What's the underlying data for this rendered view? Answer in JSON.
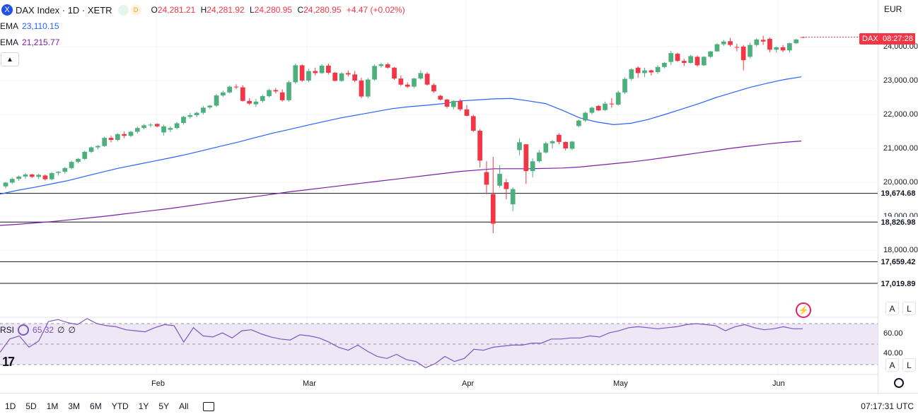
{
  "header": {
    "symbol_icon": "X",
    "title": "DAX Index · 1D · XETR",
    "badge_1": "",
    "badge_2": "D",
    "ohlc": {
      "o_key": "O",
      "o_val": "24,281.21",
      "h_key": "H",
      "h_val": "24,281.92",
      "l_key": "L",
      "l_val": "24,280.95",
      "c_key": "C",
      "c_val": "24,280.95",
      "change": "+4.47 (+0.02%)"
    }
  },
  "indicators": {
    "ema_fast": {
      "label": "EMA",
      "value": "23,110.15",
      "color": "#2962ff"
    },
    "ema_slow": {
      "label": "EMA",
      "value": "21,215.77",
      "color": "#7b1fa2"
    },
    "rsi": {
      "label": "RSI",
      "value": "65.32",
      "extra1": "∅",
      "extra2": "∅",
      "color": "#7e57c2"
    }
  },
  "currency": "EUR",
  "axis": {
    "price_ticks": [
      "24,000.00",
      "23,000.00",
      "22,000.00",
      "21,000.00",
      "20,000.00",
      "19,000.00",
      "18,000.00"
    ],
    "rsi_ticks": [
      "60.00",
      "40.00"
    ],
    "months": [
      "Feb",
      "Mar",
      "Apr",
      "May",
      "Jun"
    ]
  },
  "levels": [
    "19,674.68",
    "18,826.98",
    "17,659.42",
    "17,019.89"
  ],
  "last_price": {
    "symbol": "DAX",
    "countdown": "08:27:28"
  },
  "scale_buttons": {
    "auto": "A",
    "log": "L"
  },
  "ranges": [
    "1D",
    "5D",
    "1M",
    "3M",
    "6M",
    "YTD",
    "1Y",
    "5Y",
    "All"
  ],
  "clock": "07:17:31 UTC",
  "tv_logo": "17",
  "colors": {
    "up": "#26a69a",
    "up_fill": "#4caf7d",
    "down": "#ef5350",
    "down_fill": "#f23645",
    "rsi_band": "#ede7f6"
  },
  "chart_data": {
    "type": "candlestick",
    "title": "DAX Index · 1D · XETR",
    "ylim": [
      17400,
      24700
    ],
    "x_labels": [
      "Feb",
      "Mar",
      "Apr",
      "May",
      "Jun"
    ],
    "horizontal_levels": [
      19674.68,
      18826.98,
      17659.42,
      17019.89
    ],
    "candles": [
      [
        19880,
        20010,
        19820,
        19990
      ],
      [
        19990,
        20140,
        19950,
        20100
      ],
      [
        20100,
        20200,
        20040,
        20170
      ],
      [
        20170,
        20280,
        20100,
        20230
      ],
      [
        20230,
        20250,
        20120,
        20160
      ],
      [
        20160,
        20250,
        20100,
        20220
      ],
      [
        20200,
        20230,
        20050,
        20090
      ],
      [
        20090,
        20300,
        20060,
        20270
      ],
      [
        20280,
        20330,
        20200,
        20310
      ],
      [
        20310,
        20450,
        20250,
        20420
      ],
      [
        20420,
        20640,
        20380,
        20600
      ],
      [
        20600,
        20720,
        20560,
        20690
      ],
      [
        20690,
        20930,
        20650,
        20900
      ],
      [
        20900,
        21060,
        20860,
        21030
      ],
      [
        21030,
        21100,
        20970,
        21070
      ],
      [
        21070,
        21350,
        21040,
        21310
      ],
      [
        21310,
        21380,
        21180,
        21250
      ],
      [
        21250,
        21450,
        21200,
        21420
      ],
      [
        21420,
        21500,
        21300,
        21370
      ],
      [
        21370,
        21520,
        21330,
        21490
      ],
      [
        21490,
        21640,
        21440,
        21600
      ],
      [
        21600,
        21720,
        21560,
        21680
      ],
      [
        21680,
        21750,
        21620,
        21700
      ],
      [
        21720,
        21740,
        21620,
        21650
      ],
      [
        21470,
        21700,
        21380,
        21650
      ],
      [
        21550,
        21650,
        21480,
        21600
      ],
      [
        21600,
        21780,
        21560,
        21740
      ],
      [
        21750,
        21960,
        21700,
        21930
      ],
      [
        21930,
        22050,
        21880,
        21980
      ],
      [
        21980,
        22080,
        21920,
        22050
      ],
      [
        22050,
        22250,
        22000,
        22200
      ],
      [
        22210,
        22280,
        22160,
        22260
      ],
      [
        22260,
        22600,
        22220,
        22560
      ],
      [
        22560,
        22700,
        22520,
        22650
      ],
      [
        22650,
        22850,
        22620,
        22820
      ],
      [
        22820,
        22890,
        22750,
        22800
      ],
      [
        22800,
        22860,
        22380,
        22400
      ],
      [
        22400,
        22480,
        22280,
        22320
      ],
      [
        22300,
        22460,
        22220,
        22380
      ],
      [
        22400,
        22580,
        22350,
        22540
      ],
      [
        22540,
        22760,
        22500,
        22720
      ],
      [
        22720,
        22780,
        22620,
        22680
      ],
      [
        22650,
        22740,
        22380,
        22420
      ],
      [
        22420,
        23000,
        22380,
        22950
      ],
      [
        22950,
        23500,
        22900,
        23450
      ],
      [
        23450,
        23480,
        22960,
        23000
      ],
      [
        23000,
        23350,
        22950,
        23280
      ],
      [
        23280,
        23380,
        23150,
        23220
      ],
      [
        23220,
        23480,
        23200,
        23440
      ],
      [
        23440,
        23500,
        23180,
        23230
      ],
      [
        23230,
        23250,
        22980,
        22990
      ],
      [
        22990,
        23250,
        22960,
        23210
      ],
      [
        23220,
        23300,
        23120,
        23180
      ],
      [
        23180,
        23280,
        22950,
        23000
      ],
      [
        23000,
        23080,
        22480,
        22530
      ],
      [
        22530,
        23080,
        22480,
        23030
      ],
      [
        23030,
        23480,
        22990,
        23430
      ],
      [
        23430,
        23520,
        23370,
        23480
      ],
      [
        23480,
        23530,
        23350,
        23380
      ],
      [
        23380,
        23400,
        23020,
        23060
      ],
      [
        23060,
        23150,
        22840,
        22880
      ],
      [
        22880,
        22950,
        22780,
        22820
      ],
      [
        22820,
        23080,
        22780,
        23060
      ],
      [
        23060,
        23300,
        23020,
        23220
      ],
      [
        23200,
        23250,
        22850,
        22880
      ],
      [
        22870,
        22920,
        22640,
        22680
      ],
      [
        22550,
        22580,
        22410,
        22440
      ],
      [
        22440,
        22460,
        22180,
        22230
      ],
      [
        22220,
        22420,
        22160,
        22400
      ],
      [
        22400,
        22450,
        22100,
        22150
      ],
      [
        22150,
        22280,
        21950,
        21960
      ],
      [
        21950,
        21990,
        21480,
        21520
      ],
      [
        21520,
        21560,
        20440,
        20640
      ],
      [
        20300,
        20620,
        19650,
        19930
      ],
      [
        19650,
        20750,
        18500,
        18780
      ],
      [
        19900,
        20500,
        19850,
        20250
      ],
      [
        20000,
        20100,
        19500,
        19800
      ],
      [
        19350,
        19850,
        19150,
        19800
      ],
      [
        20950,
        21300,
        20800,
        21180
      ],
      [
        21120,
        21120,
        19950,
        20330
      ],
      [
        20330,
        20700,
        20150,
        20620
      ],
      [
        20620,
        20950,
        20580,
        20880
      ],
      [
        20880,
        21200,
        20850,
        21150
      ],
      [
        21150,
        21250,
        21000,
        21210
      ],
      [
        21400,
        21450,
        21120,
        21190
      ],
      [
        21190,
        21200,
        20940,
        21000
      ],
      [
        20990,
        21220,
        20950,
        21200
      ],
      [
        21660,
        21850,
        21620,
        21820
      ],
      [
        21820,
        22080,
        21780,
        22050
      ],
      [
        22050,
        22230,
        22000,
        22200
      ],
      [
        22250,
        22280,
        22100,
        22120
      ],
      [
        22130,
        22380,
        22100,
        22320
      ],
      [
        22320,
        22480,
        22200,
        22300
      ],
      [
        22290,
        22700,
        22260,
        22650
      ],
      [
        22650,
        23100,
        22600,
        23050
      ],
      [
        23050,
        23360,
        23000,
        23330
      ],
      [
        23380,
        23420,
        23080,
        23220
      ],
      [
        23220,
        23380,
        23100,
        23300
      ],
      [
        23300,
        23320,
        23150,
        23240
      ],
      [
        23250,
        23450,
        23200,
        23400
      ],
      [
        23400,
        23550,
        23360,
        23520
      ],
      [
        23550,
        23880,
        23460,
        23810
      ],
      [
        23790,
        23820,
        23550,
        23580
      ],
      [
        23580,
        23640,
        23430,
        23520
      ],
      [
        23520,
        23760,
        23500,
        23720
      ],
      [
        23700,
        23740,
        23410,
        23450
      ],
      [
        23450,
        23720,
        23430,
        23700
      ],
      [
        23700,
        23870,
        23660,
        23860
      ],
      [
        23860,
        24100,
        23850,
        24070
      ],
      [
        24070,
        24200,
        24020,
        24150
      ],
      [
        24160,
        24260,
        24000,
        24050
      ],
      [
        23990,
        24080,
        23860,
        23980
      ],
      [
        24000,
        24050,
        23300,
        23600
      ],
      [
        23700,
        24120,
        23650,
        24050
      ],
      [
        24050,
        24250,
        24000,
        24210
      ],
      [
        24200,
        24320,
        24050,
        24150
      ],
      [
        24230,
        24270,
        23830,
        23910
      ],
      [
        23910,
        24010,
        23820,
        23980
      ],
      [
        23980,
        24050,
        23840,
        23890
      ],
      [
        23890,
        24120,
        23820,
        24100
      ],
      [
        24100,
        24230,
        24080,
        24210
      ],
      [
        24281.21,
        24281.92,
        24280.95,
        24280.95
      ]
    ],
    "series": [
      {
        "name": "EMA",
        "value": 23110.15,
        "values": [
          19650,
          19760,
          19850,
          19950,
          20050,
          20180,
          20300,
          20420,
          20520,
          20620,
          20720,
          20830,
          20950,
          21070,
          21190,
          21320,
          21450,
          21560,
          21680,
          21790,
          21900,
          21990,
          22080,
          22170,
          22230,
          22270,
          22320,
          22400,
          22430,
          22460,
          22470,
          22400,
          22320,
          22120,
          21900,
          21780,
          21700,
          21740,
          21850,
          22000,
          22160,
          22320,
          22500,
          22650,
          22800,
          22920,
          23030,
          23110
        ]
      },
      {
        "name": "EMA",
        "value": 21215.77,
        "values": [
          18730,
          18760,
          18800,
          18840,
          18890,
          18940,
          18990,
          19050,
          19110,
          19170,
          19230,
          19300,
          19370,
          19440,
          19510,
          19580,
          19650,
          19720,
          19780,
          19840,
          19900,
          19960,
          20020,
          20080,
          20140,
          20200,
          20260,
          20320,
          20360,
          20400,
          20400,
          20400,
          20410,
          20420,
          20450,
          20500,
          20550,
          20600,
          20660,
          20730,
          20800,
          20870,
          20940,
          21010,
          21070,
          21130,
          21180,
          21215.77
        ]
      },
      {
        "name": "RSI",
        "value": 65.32,
        "values": [
          42,
          55,
          58,
          47,
          53,
          72,
          74,
          71,
          69,
          75,
          70,
          68,
          67,
          64,
          63,
          62,
          66,
          69,
          68,
          52,
          66,
          58,
          57,
          61,
          56,
          63,
          64,
          60,
          57,
          55,
          54,
          59,
          58,
          56,
          52,
          47,
          44,
          49,
          43,
          38,
          36,
          40,
          35,
          33,
          27,
          31,
          38,
          33,
          36,
          45,
          44,
          47,
          48,
          49,
          49,
          51,
          51,
          55,
          55,
          56,
          56,
          58,
          57,
          61,
          63,
          66,
          67,
          66,
          65,
          66,
          67,
          69,
          70,
          69,
          68,
          63,
          67,
          69,
          66,
          64,
          65,
          67,
          65,
          65
        ]
      }
    ]
  }
}
